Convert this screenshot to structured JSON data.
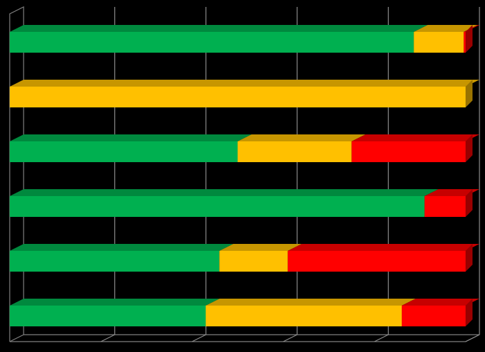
{
  "chart_data": {
    "type": "bar",
    "orientation": "horizontal",
    "stacked": "percent",
    "render_3d": true,
    "title": "",
    "xlabel": "",
    "ylabel": "",
    "legend": "none",
    "grid": true,
    "xlim": [
      0,
      100
    ],
    "categories": [
      "",
      "",
      "",
      "",
      "",
      ""
    ],
    "series": [
      {
        "color": "#00b050",
        "values": [
          89,
          0,
          50,
          91,
          46,
          43
        ]
      },
      {
        "color": "#ffc000",
        "values": [
          11,
          100,
          25,
          0,
          15,
          43
        ]
      },
      {
        "color": "#ff0000",
        "values": [
          0.4,
          0,
          25,
          9,
          39,
          14
        ]
      }
    ]
  },
  "colors": {
    "background": "#000000",
    "frame": "#7f7f7f",
    "gridline": "#8c8c8c"
  }
}
